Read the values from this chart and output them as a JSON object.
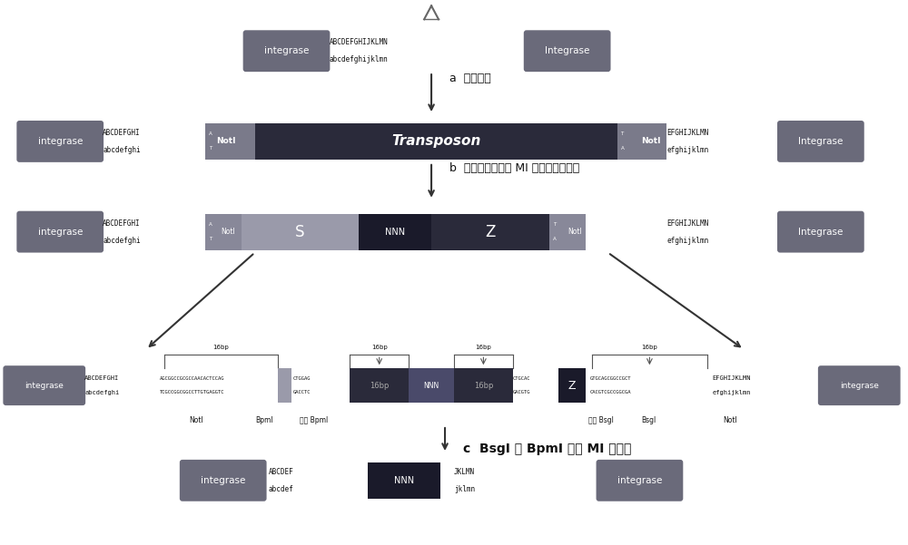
{
  "bg_color": "#ffffff",
  "box_color": "#6a6a7a",
  "dark_bar_color": "#2a2a3a",
  "med_bar_color": "#7a7a8a",
  "light_bar_color": "#888899",
  "s_bar_color": "#9a9aaa",
  "nnn_bar_color": "#1a1a2a",
  "z_bar_color": "#1a1a2a",
  "mi_left_color": "#3a3a5a",
  "mi_center_color": "#5a5a7a",
  "txt_color": "#111111",
  "label_a": "a  转座反应",
  "label_b": "b  去除转座子，以 MI 片段取代转座子",
  "label_c": "c  BsgI 及 BpmI 去除 MI 左右臂"
}
